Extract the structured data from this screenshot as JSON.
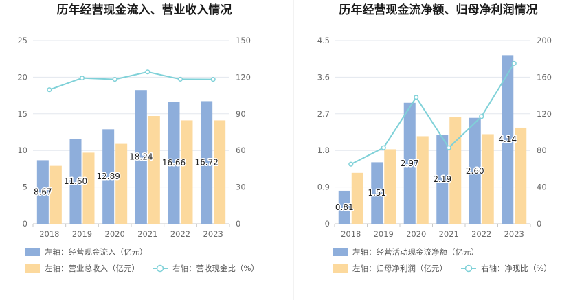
{
  "colors": {
    "bar_primary": "#8eaedb",
    "bar_secondary": "#fcd99d",
    "line": "#7fd1d8",
    "axis_text": "#6b6b6b",
    "grid": "#e3e7ee",
    "title": "#1a1a1a",
    "legend_text": "#555555",
    "divider": "#e6e6e6"
  },
  "chart_data": [
    {
      "type": "bar",
      "title": "历年经营现金流入、营业收入情况",
      "categories": [
        "2018",
        "2019",
        "2020",
        "2021",
        "2022",
        "2023"
      ],
      "series": [
        {
          "name": "经营现金流入（亿元）",
          "legend_label": "左轴：经营现金流入（亿元）",
          "axis": "left",
          "kind": "bar",
          "color": "#8eaedb",
          "values": [
            8.67,
            11.6,
            12.89,
            18.24,
            16.66,
            16.72
          ],
          "labels": [
            "8.67",
            "11.60",
            "12.89",
            "18.24",
            "16.66",
            "16.72"
          ]
        },
        {
          "name": "营业总收入（亿元）",
          "legend_label": "左轴：营业总收入（亿元）",
          "axis": "left",
          "kind": "bar",
          "color": "#fcd99d",
          "values": [
            7.9,
            9.7,
            10.9,
            14.7,
            14.1,
            14.1
          ]
        },
        {
          "name": "营收现金比（%）",
          "legend_label": "右轴：营收现金比（%）",
          "axis": "right",
          "kind": "line",
          "color": "#7fd1d8",
          "values": [
            109.7,
            119.3,
            118.2,
            124.3,
            118.3,
            118.2
          ]
        }
      ],
      "y_left": {
        "min": 0,
        "max": 25,
        "ticks": [
          "0",
          "5",
          "10",
          "15",
          "20",
          "25"
        ]
      },
      "y_right": {
        "min": 0,
        "max": 150,
        "ticks": [
          "0",
          "30",
          "60",
          "90",
          "120",
          "150"
        ]
      }
    },
    {
      "type": "bar",
      "title": "历年经营现金流净额、归母净利润情况",
      "categories": [
        "2018",
        "2019",
        "2020",
        "2021",
        "2022",
        "2023"
      ],
      "series": [
        {
          "name": "经营活动现金流净额（亿元）",
          "legend_label": "左轴：经营活动现金流净额（亿元）",
          "axis": "left",
          "kind": "bar",
          "color": "#8eaedb",
          "values": [
            0.81,
            1.51,
            2.97,
            2.19,
            2.6,
            4.14
          ],
          "labels": [
            "0.81",
            "1.51",
            "2.97",
            "2.19",
            "2.60",
            "4.14"
          ]
        },
        {
          "name": "归母净利润（亿元）",
          "legend_label": "左轴：归母净利润（亿元）",
          "axis": "left",
          "kind": "bar",
          "color": "#fcd99d",
          "values": [
            1.25,
            1.83,
            2.15,
            2.62,
            2.2,
            2.36
          ]
        },
        {
          "name": "净现比（%）",
          "legend_label": "右轴：净现比（%）",
          "axis": "right",
          "kind": "line",
          "color": "#7fd1d8",
          "values": [
            65,
            83,
            138,
            83,
            117,
            175
          ]
        }
      ],
      "y_left": {
        "min": 0,
        "max": 4.5,
        "ticks": [
          "0",
          "0.9",
          "1.8",
          "2.7",
          "3.6",
          "4.5"
        ]
      },
      "y_right": {
        "min": 0,
        "max": 200,
        "ticks": [
          "0",
          "40",
          "80",
          "120",
          "160",
          "200"
        ]
      }
    }
  ]
}
